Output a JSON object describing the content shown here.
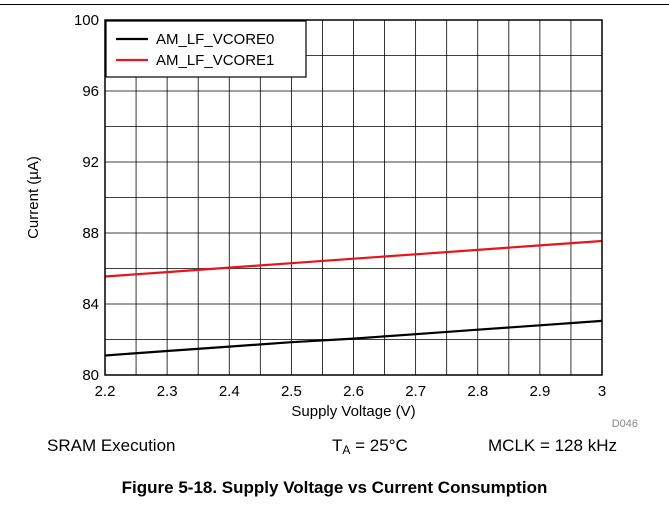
{
  "chart_data": {
    "type": "line",
    "xlabel": "Supply Voltage (V)",
    "ylabel": "Current (µA)",
    "xlim": [
      2.2,
      3.0
    ],
    "ylim": [
      80,
      100
    ],
    "x_ticks": [
      "2.2",
      "2.3",
      "2.4",
      "2.5",
      "2.6",
      "2.7",
      "2.8",
      "2.9",
      "3"
    ],
    "y_ticks": [
      "80",
      "84",
      "88",
      "92",
      "96",
      "100"
    ],
    "x_minor_step": 0.05,
    "y_minor_step": 2,
    "grid": true,
    "legend_position": "top-left",
    "plot_id": "D046",
    "series": [
      {
        "name": "AM_LF_VCORE0",
        "color": "#000000",
        "x": [
          2.2,
          2.3,
          2.4,
          2.5,
          2.6,
          2.7,
          2.8,
          2.9,
          3.0
        ],
        "y": [
          81.1,
          81.35,
          81.6,
          81.85,
          82.05,
          82.3,
          82.55,
          82.8,
          83.05
        ]
      },
      {
        "name": "AM_LF_VCORE1",
        "color": "#e8131c",
        "x": [
          2.2,
          2.3,
          2.4,
          2.5,
          2.6,
          2.7,
          2.8,
          2.9,
          3.0
        ],
        "y": [
          85.55,
          85.8,
          86.05,
          86.3,
          86.55,
          86.8,
          87.05,
          87.3,
          87.55
        ]
      }
    ]
  },
  "conditions": {
    "execution": "SRAM Execution",
    "temp_symbol": "T",
    "temp_subscript": "A",
    "temp_value": " = 25°C",
    "clock": "MCLK = 128 kHz"
  },
  "caption": "Figure 5-18. Supply Voltage vs Current Consumption"
}
